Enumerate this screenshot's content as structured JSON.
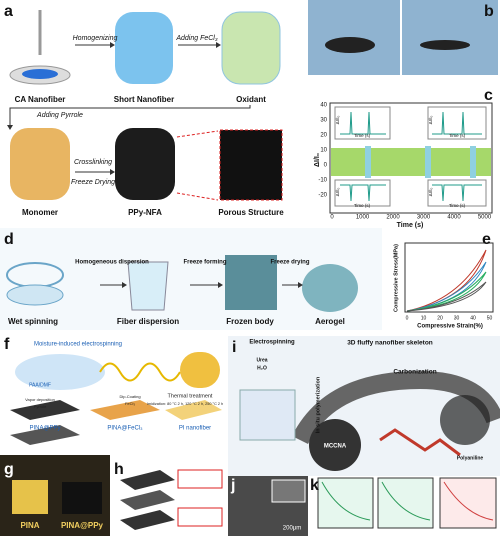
{
  "panels": {
    "a": {
      "label": "a",
      "arrows": [
        "Homogenizing",
        "Adding FeCl₃",
        "Adding Pyrrole",
        "Crosslinking",
        "Freeze Drying"
      ],
      "captions": [
        "CA Nanofiber",
        "Short Nanofiber",
        "Oxidant",
        "Monomer",
        "PPy-NFA",
        "Porous Structure"
      ]
    },
    "b": {
      "label": "b"
    },
    "c": {
      "label": "c",
      "x_label": "Time (s)",
      "y_label": "ΔI/I₀",
      "xticks": [
        "0",
        "1000",
        "2000",
        "3000",
        "4000",
        "5000"
      ],
      "yticks": [
        "40",
        "30",
        "20",
        "10",
        "0",
        "-10",
        "-20"
      ],
      "inset_x_label": "Time (s)",
      "inset_y_label": "ΔI/I₀"
    },
    "d": {
      "label": "d",
      "arrows": [
        "Homogeneous dispersion",
        "Freeze forming",
        "Freeze drying"
      ],
      "captions": [
        "Wet spinning",
        "Fiber dispersion",
        "Frozen body",
        "Aerogel"
      ]
    },
    "e": {
      "label": "e",
      "x_label": "Compressive Strain(%)",
      "y_label": "Compressive Stress(MPa)",
      "xticks": [
        "0",
        "10",
        "20",
        "30",
        "40",
        "50"
      ]
    },
    "f": {
      "label": "f",
      "texts": [
        "Moisture-induced electrospinning",
        "PAA/DMF",
        "Thermal treatment",
        "Imidization: 80 °C 2 h, 120 °C 2 h, 250 °C 2 h",
        "Vapor deposition",
        "Pyrrole",
        "Dip-Coating",
        "FeCl₃"
      ],
      "captions": [
        "PINA@PPy",
        "PINA@FeCl₃",
        "PI nanofiber"
      ]
    },
    "g": {
      "label": "g",
      "captions": [
        "PINA",
        "PINA@PPy"
      ]
    },
    "h": {
      "label": "h"
    },
    "i": {
      "label": "i",
      "texts": [
        "Electrospinning",
        "Urea",
        "H₂O",
        "3D fluffy nanofiber skeleton",
        "Carbonization",
        "In situ polymerization",
        "MCCNA",
        "Polyaniline"
      ]
    },
    "j": {
      "label": "j",
      "scale_bar": "200μm"
    },
    "k": {
      "label": "k"
    }
  }
}
